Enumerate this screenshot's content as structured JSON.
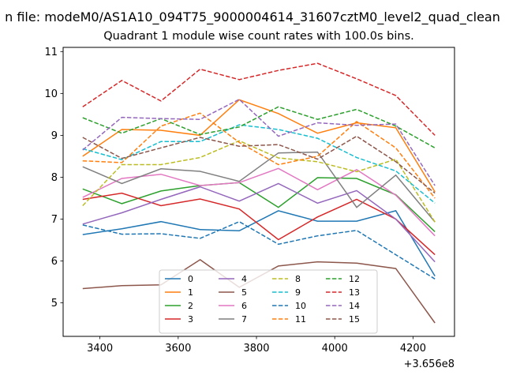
{
  "chart_data": {
    "type": "line",
    "suptitle": "n file: modeM0/AS1A10_094T75_9000004614_31607cztM0_level2_quad_clean",
    "title": "Quadrant 1 module wise count rates with 100.0s bins.",
    "xlabel": "",
    "ylabel": "",
    "x_offset_label": "+3.656e8",
    "x": [
      3356,
      3456,
      3556,
      3656,
      3756,
      3856,
      3956,
      4056,
      4156,
      4256
    ],
    "xlim": [
      3306,
      4306
    ],
    "ylim": [
      4.2,
      11.1
    ],
    "xticks": [
      3400,
      3600,
      3800,
      4000,
      4200
    ],
    "yticks": [
      5,
      6,
      7,
      8,
      9,
      10,
      11
    ],
    "grid": false,
    "legend": {
      "placement": "lower-center",
      "columns": 4
    },
    "series": [
      {
        "name": "0",
        "color": "#1f77b4",
        "dash": "solid",
        "values": [
          6.63,
          6.77,
          6.94,
          6.75,
          6.72,
          7.2,
          6.95,
          6.95,
          7.2,
          5.64
        ]
      },
      {
        "name": "1",
        "color": "#ff7f0e",
        "dash": "solid",
        "values": [
          8.5,
          9.14,
          9.12,
          9.0,
          9.85,
          9.52,
          9.05,
          9.3,
          9.18,
          7.65
        ]
      },
      {
        "name": "2",
        "color": "#2ca02c",
        "dash": "solid",
        "values": [
          7.72,
          7.37,
          7.67,
          7.8,
          7.87,
          7.28,
          7.99,
          7.97,
          7.58,
          6.7
        ]
      },
      {
        "name": "3",
        "color": "#d62728",
        "dash": "solid",
        "values": [
          7.47,
          7.62,
          7.32,
          7.48,
          7.24,
          6.51,
          7.05,
          7.47,
          7.0,
          6.15
        ]
      },
      {
        "name": "4",
        "color": "#9467bd",
        "dash": "solid",
        "values": [
          6.88,
          7.15,
          7.47,
          7.77,
          7.43,
          7.85,
          7.38,
          7.68,
          7.0,
          5.98
        ]
      },
      {
        "name": "5",
        "color": "#8c564b",
        "dash": "solid",
        "values": [
          5.34,
          5.41,
          5.43,
          6.03,
          5.37,
          5.88,
          5.98,
          5.95,
          5.82,
          4.52
        ]
      },
      {
        "name": "6",
        "color": "#e377c2",
        "dash": "solid",
        "values": [
          7.52,
          7.97,
          8.07,
          7.8,
          7.87,
          8.21,
          7.7,
          8.18,
          7.57,
          6.6
        ]
      },
      {
        "name": "7",
        "color": "#7f7f7f",
        "dash": "solid",
        "values": [
          8.25,
          7.85,
          8.2,
          8.14,
          7.9,
          8.58,
          8.6,
          7.28,
          8.05,
          6.93
        ]
      },
      {
        "name": "8",
        "color": "#bcbd22",
        "dash": "dashed",
        "values": [
          7.32,
          8.3,
          8.3,
          8.47,
          8.87,
          8.46,
          8.37,
          8.13,
          8.43,
          6.93
        ]
      },
      {
        "name": "9",
        "color": "#17becf",
        "dash": "dashed",
        "values": [
          8.68,
          8.42,
          8.85,
          8.85,
          9.25,
          9.14,
          8.93,
          8.47,
          8.15,
          7.38
        ]
      },
      {
        "name": "10",
        "color": "#1f77b4",
        "dash": "dashed",
        "values": [
          6.86,
          6.64,
          6.65,
          6.54,
          6.94,
          6.4,
          6.6,
          6.73,
          6.15,
          5.57
        ]
      },
      {
        "name": "11",
        "color": "#ff7f0e",
        "dash": "dashed",
        "values": [
          8.39,
          8.35,
          9.22,
          9.53,
          8.83,
          8.3,
          8.5,
          9.33,
          8.7,
          7.5
        ]
      },
      {
        "name": "12",
        "color": "#2ca02c",
        "dash": "dashed",
        "values": [
          9.42,
          9.05,
          9.4,
          9.02,
          9.2,
          9.68,
          9.38,
          9.62,
          9.22,
          8.7
        ]
      },
      {
        "name": "13",
        "color": "#d62728",
        "dash": "dashed",
        "values": [
          9.68,
          10.31,
          9.82,
          10.58,
          10.33,
          10.55,
          10.72,
          10.35,
          9.95,
          9.0
        ]
      },
      {
        "name": "14",
        "color": "#9467bd",
        "dash": "dashed",
        "values": [
          8.65,
          9.43,
          9.4,
          9.38,
          9.86,
          8.98,
          9.3,
          9.24,
          9.27,
          7.8
        ]
      },
      {
        "name": "15",
        "color": "#8c564b",
        "dash": "dashed",
        "values": [
          8.95,
          8.45,
          8.7,
          8.95,
          8.74,
          8.78,
          8.43,
          8.98,
          8.37,
          7.62
        ]
      }
    ]
  }
}
